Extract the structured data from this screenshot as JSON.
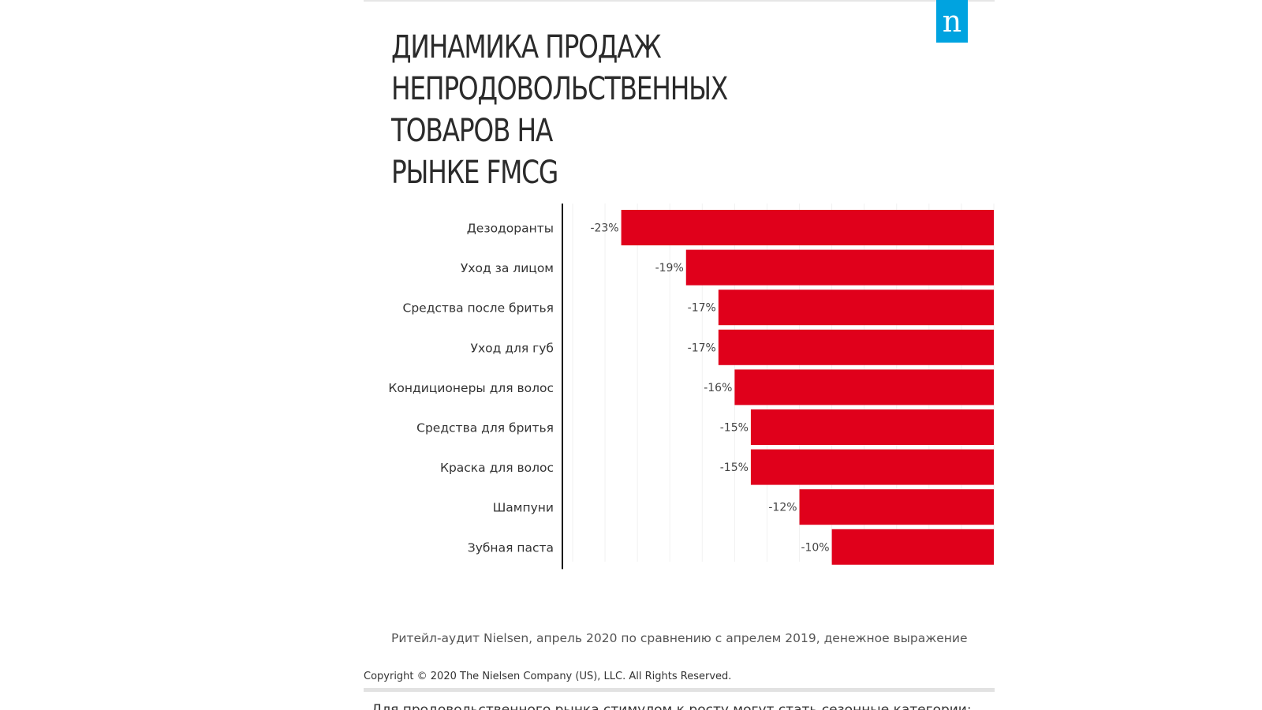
{
  "brand": {
    "logo_text": "n",
    "logo_color": "#00a3e0"
  },
  "title_lines": [
    "ДИНАМИКА ПРОДАЖ",
    "НЕПРОДОВОЛЬСТВЕННЫХ ТОВАРОВ НА",
    "РЫНКЕ FMCG"
  ],
  "source_note": "Ритейл-аудит Nielsen, апрель 2020 по сравнению с апрелем 2019, денежное выражение",
  "copyright": "Copyright © 2020 The Nielsen Company (US), LLC. All Rights Reserved.",
  "next_paragraph": "Для продовольственного рынка стимулом к росту могут стать сезонные категории:",
  "chart_data": {
    "type": "bar",
    "orientation": "horizontal",
    "categories": [
      "Дезодоранты",
      "Уход за лицом",
      "Средства после бритья",
      "Уход для губ",
      "Кондиционеры для волос",
      "Средства для бритья",
      "Краска для волос",
      "Шампуни",
      "Зубная паста"
    ],
    "values": [
      -23,
      -19,
      -17,
      -17,
      -16,
      -15,
      -15,
      -12,
      -10
    ],
    "data_labels": [
      "-23%",
      "-19%",
      "-17%",
      "-17%",
      "-16%",
      "-15%",
      "-15%",
      "-12%",
      "-10%"
    ],
    "unit": "%",
    "xlim": [
      -26,
      0
    ],
    "bar_color": "#e0001b",
    "grid": true,
    "legend": "none"
  }
}
